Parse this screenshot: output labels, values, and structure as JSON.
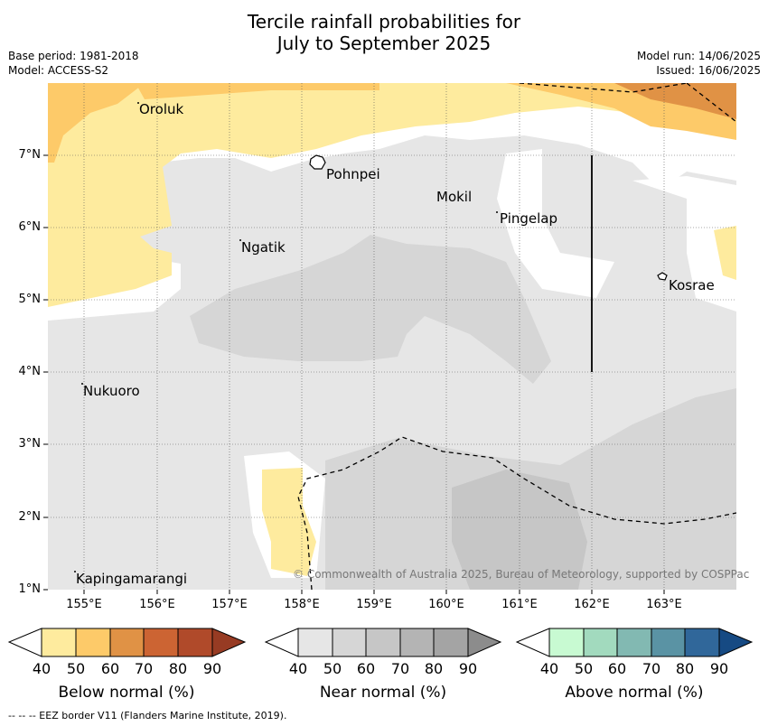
{
  "title_line1": "Tercile rainfall probabilities for",
  "title_line2": "July to September 2025",
  "base_period": "Base period: 1981-2018",
  "model": "Model: ACCESS-S2",
  "model_run": "Model run: 14/06/2025",
  "issued": "Issued: 16/06/2025",
  "copyright": "© Commonwealth of Australia 2025, Bureau of Meteorology, supported by COSPPac",
  "footnote": "--  --  -- EEZ border V11 (Flanders Marine Institute, 2019).",
  "lat_ticks": [
    "7°N",
    "6°N",
    "5°N",
    "4°N",
    "3°N",
    "2°N",
    "1°N"
  ],
  "lon_ticks": [
    "155°E",
    "156°E",
    "157°E",
    "158°E",
    "159°E",
    "160°E",
    "161°E",
    "162°E",
    "163°E"
  ],
  "places": [
    "Oroluk",
    "Pohnpei",
    "Mokil",
    "Pingelap",
    "Ngatik",
    "Kosrae",
    "Nukuoro",
    "Kapingamarangi"
  ],
  "colorbars": [
    {
      "label": "Below normal (%)",
      "ticks": [
        "40",
        "50",
        "60",
        "70",
        "80",
        "90"
      ],
      "colors": [
        "#ffffff",
        "#feeb9e",
        "#fdca69",
        "#e09245",
        "#cc6433",
        "#b04a2a",
        "#973b23"
      ]
    },
    {
      "label": "Near normal (%)",
      "ticks": [
        "40",
        "50",
        "60",
        "70",
        "80",
        "90"
      ],
      "colors": [
        "#ffffff",
        "#e6e6e6",
        "#d6d6d6",
        "#c6c6c6",
        "#b4b4b4",
        "#a4a4a4",
        "#8c8c8c"
      ]
    },
    {
      "label": "Above normal (%)",
      "ticks": [
        "40",
        "50",
        "60",
        "70",
        "80",
        "90"
      ],
      "colors": [
        "#ffffff",
        "#c8fad2",
        "#a2dabe",
        "#82b9b2",
        "#5a93a4",
        "#30679a",
        "#164a83"
      ]
    }
  ]
}
